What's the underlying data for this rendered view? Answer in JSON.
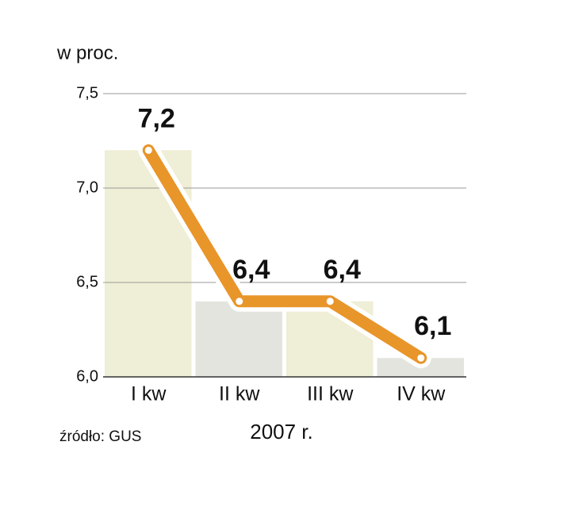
{
  "chart_data": {
    "type": "line",
    "subtitle": "w proc.",
    "x_label": "2007 r.",
    "source": "źródło: GUS",
    "categories": [
      "I kw",
      "II kw",
      "III kw",
      "IV kw"
    ],
    "values": [
      7.2,
      6.4,
      6.4,
      6.1
    ],
    "value_labels": [
      "7,2",
      "6,4",
      "6,4",
      "6,1"
    ],
    "color": "#e8952a",
    "ylim": [
      6.0,
      7.5
    ],
    "yticks": [
      {
        "value": 6.0,
        "label": "6,0"
      },
      {
        "value": 6.5,
        "label": "6,5"
      },
      {
        "value": 7.0,
        "label": "7,0"
      },
      {
        "value": 7.5,
        "label": "7,5"
      }
    ],
    "grid": true
  }
}
